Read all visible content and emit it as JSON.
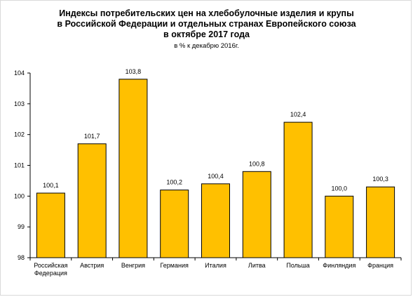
{
  "chart_data": {
    "type": "bar",
    "title_lines": [
      "Индексы потребительских цен на хлебобулочные изделия и крупы",
      "в Российской Федерации и отдельных странах Европейского союза",
      "в октябре 2017 года"
    ],
    "subtitle": "в % к декабрю 2016г.",
    "categories": [
      [
        "Российская",
        "Федерация"
      ],
      [
        "Австрия"
      ],
      [
        "Венгрия"
      ],
      [
        "Германия"
      ],
      [
        "Италия"
      ],
      [
        "Литва"
      ],
      [
        "Польша"
      ],
      [
        "Финляндия"
      ],
      [
        "Франция"
      ]
    ],
    "values": [
      100.1,
      101.7,
      103.8,
      100.2,
      100.4,
      100.8,
      102.4,
      100.0,
      100.3
    ],
    "value_labels": [
      "100,1",
      "101,7",
      "103,8",
      "100,2",
      "100,4",
      "100,8",
      "102,4",
      "100,0",
      "100,3"
    ],
    "ylim": [
      98,
      104
    ],
    "yticks": [
      98,
      99,
      100,
      101,
      102,
      103,
      104
    ],
    "bar_color": "#FFC000",
    "bar_border_color": "#000000",
    "grid": false,
    "legend": "none",
    "xlabel": "",
    "ylabel": ""
  }
}
